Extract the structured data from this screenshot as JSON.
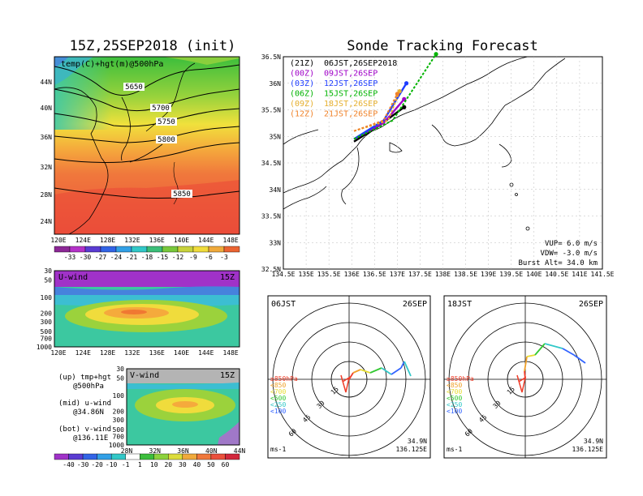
{
  "map_title": "15Z,25SEP2018 (init)",
  "map_label": "temp(C)+hgt(m)@500hPa",
  "contour_labels": [
    "5650",
    "5700",
    "5750",
    "5800",
    "5850"
  ],
  "map_lat_ticks": [
    "44N",
    "40N",
    "36N",
    "32N",
    "28N",
    "24N"
  ],
  "map_lon_ticks": [
    "120E",
    "124E",
    "128E",
    "132E",
    "136E",
    "140E",
    "144E",
    "148E"
  ],
  "temp_scale": [
    "-33",
    "-30",
    "-27",
    "-24",
    "-21",
    "-18",
    "-15",
    "-12",
    "-9",
    "-6",
    "-3"
  ],
  "u_panel": {
    "label": "U-wind",
    "time": "15Z",
    "lon_ticks": [
      "120E",
      "124E",
      "128E",
      "132E",
      "136E",
      "140E",
      "144E",
      "148E"
    ]
  },
  "v_panel": {
    "label": "V-wind",
    "time": "15Z",
    "lat_ticks": [
      "28N",
      "32N",
      "36N",
      "40N",
      "44N"
    ]
  },
  "p_ticks": [
    "30",
    "50",
    "100",
    "200",
    "300",
    "500",
    "700",
    "1000"
  ],
  "wind_scale": [
    "-40",
    "-30",
    "-20",
    "-10",
    "-1",
    "1",
    "10",
    "20",
    "30",
    "40",
    "50",
    "60"
  ],
  "notes": [
    {
      "a": "(up) tmp+hgt",
      "b": "@500hPa"
    },
    {
      "a": "(mid) u-wind",
      "b": "@34.86N"
    },
    {
      "a": "(bot) v-wind",
      "b": "@136.11E"
    }
  ],
  "track_title": "Sonde Tracking Forecast",
  "track_lat_ticks": [
    "36.5N",
    "36N",
    "35.5N",
    "35N",
    "34.5N",
    "34N",
    "33.5N",
    "33N",
    "32.5N"
  ],
  "track_lon_ticks": [
    "134.5E",
    "135E",
    "135.5E",
    "136E",
    "136.5E",
    "137E",
    "137.5E",
    "138E",
    "138.5E",
    "139E",
    "139.5E",
    "140E",
    "140.5E",
    "141E",
    "141.5E"
  ],
  "launches": [
    {
      "utc": "(21Z)",
      "jst": "06JST,26SEP2018",
      "color": "#000000"
    },
    {
      "utc": "(00Z)",
      "jst": "09JST,26SEP",
      "color": "#a000c8"
    },
    {
      "utc": "(03Z)",
      "jst": "12JST,26SEP",
      "color": "#1e3cff"
    },
    {
      "utc": "(06Z)",
      "jst": "15JST,26SEP",
      "color": "#00b400"
    },
    {
      "utc": "(09Z)",
      "jst": "18JST,26SEP",
      "color": "#e6af2d"
    },
    {
      "utc": "(12Z)",
      "jst": "21JST,26SEP",
      "color": "#f08228"
    }
  ],
  "params": {
    "vup": "VUP= 6.0 m/s",
    "vdw": "VDW= -3.0 m/s",
    "burst": "Burst Alt= 34.0 km"
  },
  "hodographs": [
    {
      "time": "06JST",
      "date": "26SEP"
    },
    {
      "time": "18JST",
      "date": "26SEP"
    }
  ],
  "hodo_rings": [
    "15",
    "30",
    "45",
    "60"
  ],
  "hodo_legend": [
    {
      "label": "≥850hPa",
      "color": "#f03c28"
    },
    {
      "label": "<850",
      "color": "#f0a028"
    },
    {
      "label": "<700",
      "color": "#e6dc32"
    },
    {
      "label": "<500",
      "color": "#32c832"
    },
    {
      "label": "<250",
      "color": "#32c8c8"
    },
    {
      "label": "<100",
      "color": "#3264ff"
    }
  ],
  "hodo_units": "ms-1",
  "hodo_lat": "34.9N",
  "hodo_lon": "136.125E",
  "chart_data": {
    "type": "line",
    "title": "Sonde Tracking Forecast",
    "xlim": [
      134.5,
      141.5
    ],
    "ylim": [
      32.5,
      36.5
    ],
    "series": [
      {
        "name": "(21Z) 06JST,26SEP2018",
        "lon": [
          136.05,
          136.6,
          137.15
        ],
        "lat": [
          34.9,
          35.2,
          35.55
        ]
      },
      {
        "name": "(00Z) 09JST,26SEP",
        "lon": [
          136.05,
          136.7,
          137.15
        ],
        "lat": [
          34.95,
          35.25,
          35.7
        ]
      },
      {
        "name": "(03Z) 12JST,26SEP",
        "lon": [
          136.05,
          136.7,
          137.2
        ],
        "lat": [
          34.95,
          35.3,
          36.0
        ]
      },
      {
        "name": "(06Z) 15JST,26SEP",
        "lon": [
          136.05,
          136.9,
          137.85
        ],
        "lat": [
          34.95,
          35.3,
          36.55
        ]
      },
      {
        "name": "(09Z) 18JST,26SEP",
        "lon": [
          136.05,
          136.8,
          137.05
        ],
        "lat": [
          35.1,
          35.3,
          35.85
        ]
      },
      {
        "name": "(12Z) 21JST,26SEP",
        "lon": [
          136.05,
          136.7,
          137.0
        ],
        "lat": [
          35.1,
          35.3,
          35.8
        ]
      }
    ]
  }
}
